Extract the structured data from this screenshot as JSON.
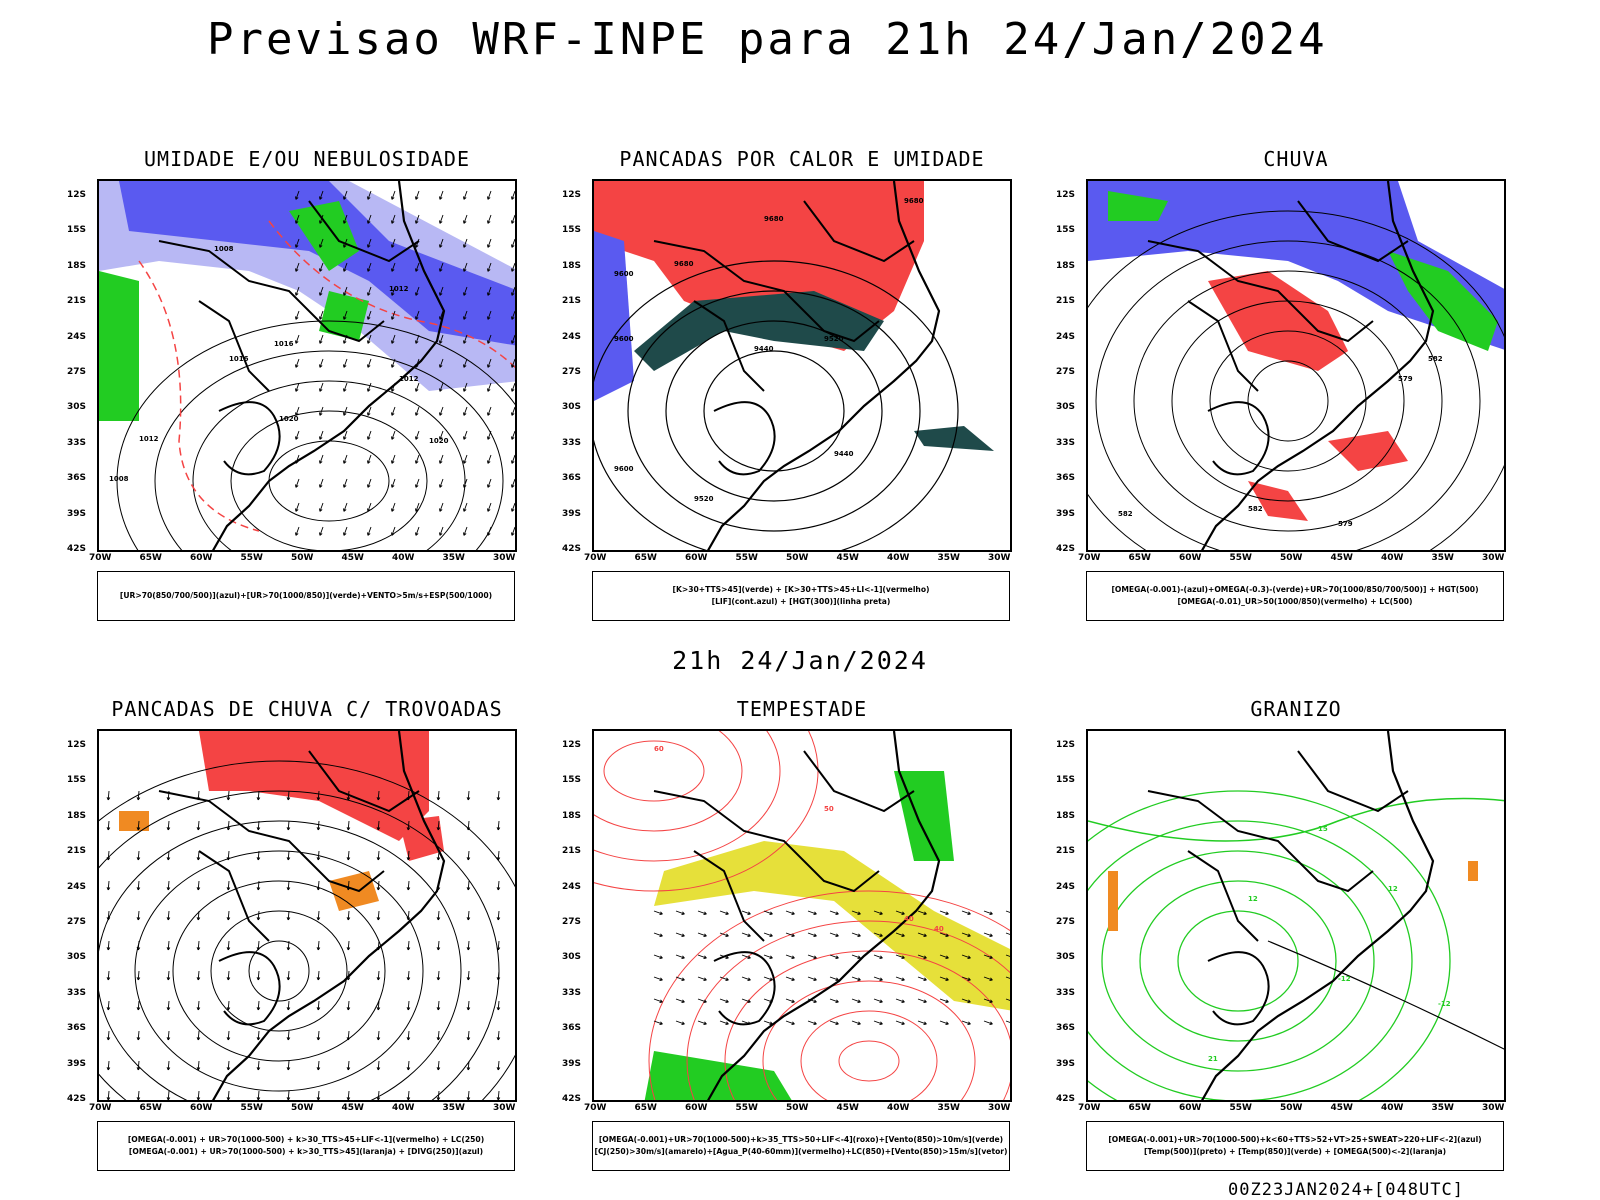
{
  "title": "Previsao WRF-INPE  para 21h 24/Jan/2024",
  "mid_title": "21h 24/Jan/2024",
  "footer": "00Z23JAN2024+[048UTC]",
  "lat_labels": [
    "12S",
    "15S",
    "18S",
    "21S",
    "24S",
    "27S",
    "30S",
    "33S",
    "36S",
    "39S",
    "42S"
  ],
  "lon_labels": [
    "70W",
    "65W",
    "60W",
    "55W",
    "50W",
    "45W",
    "40W",
    "35W",
    "30W"
  ],
  "colors": {
    "humid_blue": "#5a5af0",
    "humid_light": "#b8b8f4",
    "green": "#22cc22",
    "red": "#f44444",
    "dark_teal": "#1f4a4a",
    "yellow": "#e6e03a",
    "orange": "#f08a22",
    "contour": "#000000"
  },
  "panels": [
    {
      "title": "UMIDADE E/OU NEBULOSIDADE",
      "legend": [
        "[UR>70(850/700/500)](azul)+[UR>70(1000/850)](verde)+VENTO>5m/s+ESP(500/1000)"
      ],
      "labels": [
        "1008",
        "1012",
        "1016",
        "1020",
        "1016",
        "1012",
        "1020",
        "1008",
        "1012"
      ]
    },
    {
      "title": "PANCADAS POR CALOR E UMIDADE",
      "legend": [
        "[K>30+TTS>45](verde)  +  [K>30+TTS>45+LI<-1](vermelho)",
        "[LIF](cont.azul)  +  [HGT(300)](linha preta)"
      ],
      "labels": [
        "9680",
        "9680",
        "9680",
        "9600",
        "9440",
        "9520",
        "9440",
        "9600",
        "9520",
        "9600"
      ]
    },
    {
      "title": "CHUVA",
      "legend": [
        "[OMEGA(-0.001)-(azul)+OMEGA(-0.3)-(verde)+UR>70(1000/850/700/500)]  +  HGT(500)",
        "[OMEGA(-0.01)_UR>50(1000/850)(vermelho)  +  LC(500)"
      ],
      "labels": [
        "582",
        "579",
        "582",
        "582",
        "579"
      ]
    },
    {
      "title": "PANCADAS DE CHUVA C/ TROVOADAS",
      "legend": [
        "[OMEGA(-0.001)  +  UR>70(1000-500)  +  k>30_TTS>45+LIF<-1](vermelho)  +  LC(250)",
        "[OMEGA(-0.001)  +  UR>70(1000-500)  +  k>30_TTS>45](laranja)  +  [DIVG(250)](azul)"
      ],
      "labels": []
    },
    {
      "title": "TEMPESTADE",
      "legend": [
        "[OMEGA(-0.001)+UR>70(1000-500)+k>35_TTS>50+LIF<-4](roxo)+[Vento(850)>10m/s](verde)",
        "[CJ(250)>30m/s](amarelo)+[Agua_P(40-60mm)](vermelho)+LC(850)+[Vento(850)>15m/s](vetor)"
      ],
      "labels": [
        "40",
        "50",
        "60",
        "40"
      ]
    },
    {
      "title": "GRANIZO",
      "legend": [
        "[OMEGA(-0.001)+UR>70(1000-500)+k<60+TTS>52+VT>25+SWEAT>220+LIF<-2](azul)",
        "[Temp(500)](preto)  +  [Temp(850)](verde)  +  [OMEGA(500)<-2](laranja)"
      ],
      "labels": [
        "-12",
        "-12",
        "12",
        "15",
        "12",
        "21"
      ]
    }
  ]
}
